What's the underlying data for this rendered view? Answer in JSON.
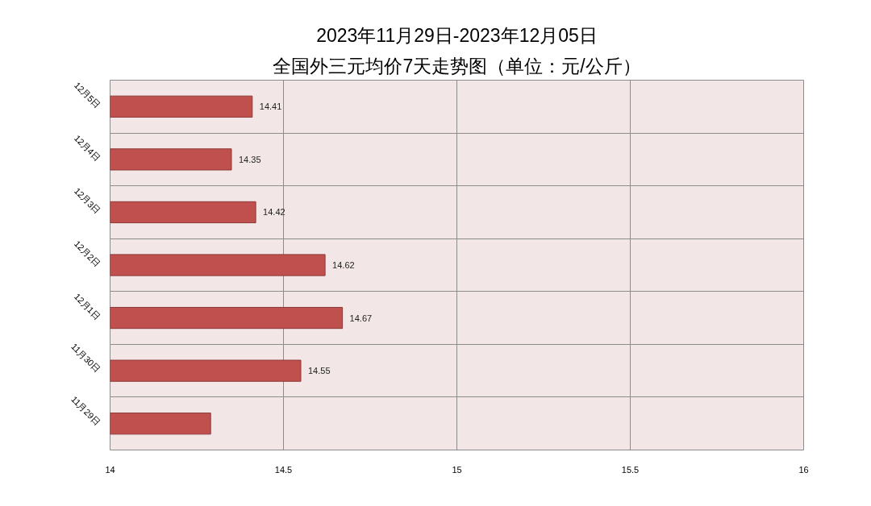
{
  "chart_data": {
    "type": "bar",
    "orientation": "horizontal",
    "title": "2023年11月29日-2023年12月05日",
    "subtitle": "全国外三元均价7天走势图（单位：元/公斤）",
    "categories": [
      "12月5日",
      "12月4日",
      "12月3日",
      "12月2日",
      "12月1日",
      "11月30日",
      "11月29日"
    ],
    "values": [
      14.41,
      14.35,
      14.42,
      14.62,
      14.67,
      14.55,
      14.29
    ],
    "value_labels": [
      "14.41",
      "14.35",
      "14.42",
      "14.62",
      "14.67",
      "14.55",
      null
    ],
    "color": "#c0504d",
    "xlim": [
      14,
      16
    ],
    "xticks": [
      14,
      14.5,
      15,
      15.5,
      16
    ],
    "grid": true
  }
}
